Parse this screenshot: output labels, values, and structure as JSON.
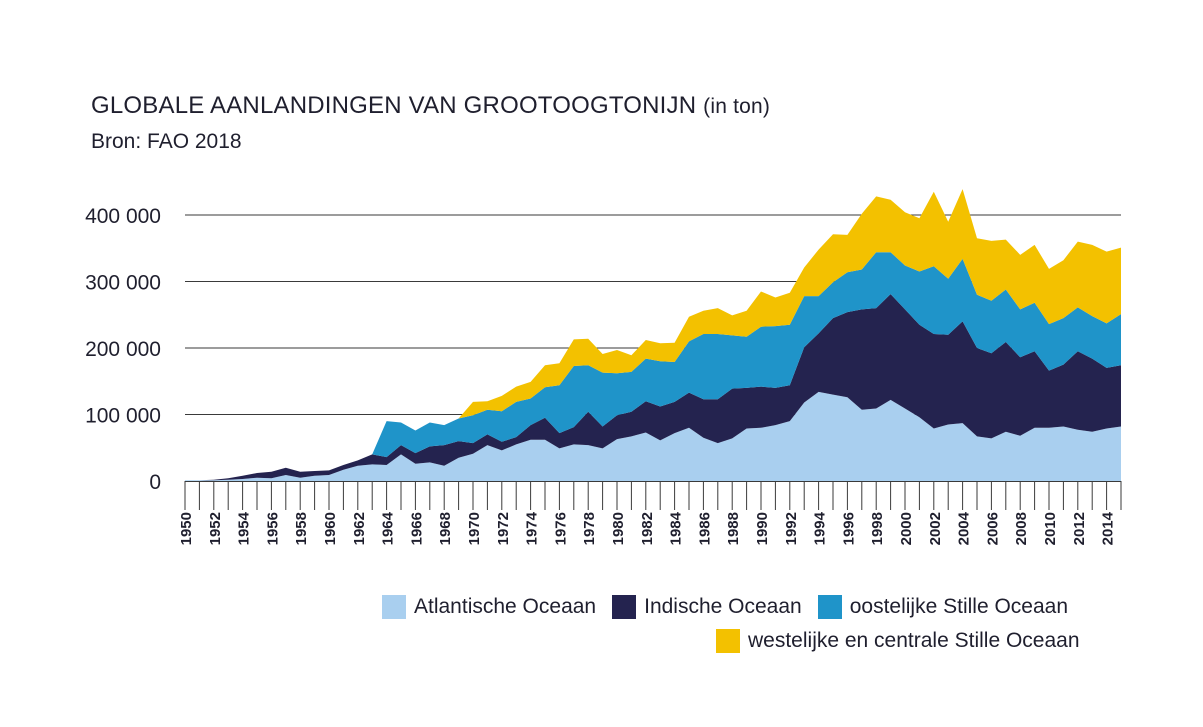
{
  "header": {
    "title": "GLOBALE AANLANDINGEN VAN GROOTOOGTONIJN",
    "title_unit": "(in ton)",
    "source": "Bron: FAO 2018"
  },
  "chart_data": {
    "type": "area",
    "stacked": true,
    "title": "GLOBALE AANLANDINGEN VAN GROOTOOGTONIJN (in ton)",
    "xlabel": "",
    "ylabel": "",
    "ylim": [
      0,
      400000
    ],
    "grid": true,
    "legend_position": "bottom-right",
    "yticks": [
      0,
      100000,
      200000,
      300000,
      400000
    ],
    "ytick_labels": [
      "0",
      "100 000",
      "200 000",
      "300 000",
      "400 000"
    ],
    "xtick_labels": [
      "1950",
      "1952",
      "1954",
      "1956",
      "1958",
      "1960",
      "1962",
      "1964",
      "1966",
      "1968",
      "1970",
      "1972",
      "1974",
      "1976",
      "1978",
      "1980",
      "1982",
      "1984",
      "1986",
      "1988",
      "1990",
      "1992",
      "1994",
      "1996",
      "1998",
      "2000",
      "2002",
      "2004",
      "2006",
      "2008",
      "2010",
      "2012",
      "2014"
    ],
    "x": [
      1950,
      1951,
      1952,
      1953,
      1954,
      1955,
      1956,
      1957,
      1958,
      1959,
      1960,
      1961,
      1962,
      1963,
      1964,
      1965,
      1966,
      1967,
      1968,
      1969,
      1970,
      1971,
      1972,
      1973,
      1974,
      1975,
      1976,
      1977,
      1978,
      1979,
      1980,
      1981,
      1982,
      1983,
      1984,
      1985,
      1986,
      1987,
      1988,
      1989,
      1990,
      1991,
      1992,
      1993,
      1994,
      1995,
      1996,
      1997,
      1998,
      1999,
      2000,
      2001,
      2002,
      2003,
      2004,
      2005,
      2006,
      2007,
      2008,
      2009,
      2010,
      2011,
      2012,
      2013,
      2014,
      2015
    ],
    "series": [
      {
        "name": "Atlantische Oceaan",
        "color": "#a9cfef",
        "values": [
          1000,
          1000,
          1000,
          2000,
          3000,
          5000,
          4000,
          9000,
          5000,
          8000,
          9000,
          17000,
          23000,
          25000,
          24000,
          40000,
          26000,
          28000,
          23000,
          35000,
          41000,
          54000,
          46000,
          55000,
          62000,
          62000,
          49000,
          55000,
          54000,
          49000,
          63000,
          67000,
          73000,
          61000,
          72000,
          80000,
          65000,
          57000,
          64000,
          79000,
          80000,
          84000,
          90000,
          118000,
          134000,
          130000,
          126000,
          107000,
          109000,
          122000,
          109000,
          96000,
          79000,
          85000,
          87000,
          67000,
          64000,
          74000,
          68000,
          80000,
          80000,
          82000,
          77000,
          74000,
          79000,
          82000
        ]
      },
      {
        "name": "Indische Oceaan",
        "color": "#24234f",
        "values": [
          0,
          0,
          1000,
          2000,
          5000,
          7000,
          10000,
          11000,
          9000,
          7000,
          7000,
          7000,
          8000,
          15000,
          12000,
          14000,
          16000,
          24000,
          31000,
          25000,
          16000,
          16000,
          13000,
          11000,
          22000,
          33000,
          23000,
          26000,
          50000,
          33000,
          36000,
          37000,
          47000,
          51000,
          47000,
          53000,
          58000,
          66000,
          75000,
          61000,
          62000,
          56000,
          54000,
          83000,
          88000,
          115000,
          128000,
          151000,
          151000,
          159000,
          149000,
          139000,
          142000,
          135000,
          153000,
          133000,
          128000,
          135000,
          118000,
          115000,
          86000,
          93000,
          118000,
          110000,
          91000,
          92000
        ]
      },
      {
        "name": "oostelijke Stille Oceaan",
        "color": "#1f94c9",
        "values": [
          0,
          0,
          0,
          0,
          0,
          0,
          0,
          0,
          0,
          0,
          0,
          0,
          0,
          0,
          54000,
          34000,
          34000,
          36000,
          30000,
          34000,
          42000,
          37000,
          46000,
          53000,
          40000,
          46000,
          72000,
          92000,
          70000,
          81000,
          63000,
          60000,
          64000,
          68000,
          60000,
          77000,
          98000,
          98000,
          80000,
          77000,
          90000,
          93000,
          91000,
          77000,
          56000,
          54000,
          60000,
          60000,
          84000,
          63000,
          66000,
          80000,
          102000,
          84000,
          94000,
          80000,
          79000,
          79000,
          72000,
          73000,
          70000,
          70000,
          66000,
          64000,
          67000,
          77000
        ]
      },
      {
        "name": "westelijke en centrale Stille Oceaan",
        "color": "#f3c100",
        "values": [
          0,
          0,
          0,
          0,
          0,
          0,
          0,
          0,
          0,
          0,
          0,
          0,
          0,
          0,
          0,
          0,
          0,
          0,
          0,
          0,
          20000,
          13000,
          23000,
          23000,
          25000,
          33000,
          33000,
          40000,
          40000,
          28000,
          35000,
          25000,
          28000,
          27000,
          29000,
          37000,
          35000,
          39000,
          30000,
          39000,
          53000,
          43000,
          48000,
          43000,
          70000,
          72000,
          56000,
          84000,
          84000,
          79000,
          80000,
          80000,
          112000,
          86000,
          105000,
          85000,
          90000,
          75000,
          82000,
          87000,
          83000,
          87000,
          99000,
          107000,
          108000,
          100000
        ]
      }
    ]
  }
}
